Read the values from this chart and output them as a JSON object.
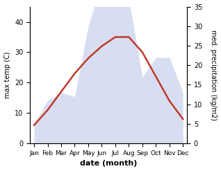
{
  "months": [
    "Jan",
    "Feb",
    "Mar",
    "Apr",
    "May",
    "Jun",
    "Jul",
    "Aug",
    "Sep",
    "Oct",
    "Nov",
    "Dec"
  ],
  "max_temp": [
    6,
    11,
    17,
    23,
    28,
    32,
    35,
    35,
    30,
    22,
    14,
    8
  ],
  "precipitation": [
    5,
    11,
    13,
    12,
    30,
    41,
    37,
    37,
    17,
    22,
    22,
    13
  ],
  "temp_color": "#c0392b",
  "precip_fill_color": "#b8c4e8",
  "temp_ylim": [
    0,
    45
  ],
  "temp_yticks": [
    0,
    10,
    20,
    30,
    40
  ],
  "precip_ylim_max": 35,
  "precip_yticks": [
    0,
    5,
    10,
    15,
    20,
    25,
    30,
    35
  ],
  "xlabel": "date (month)",
  "ylabel_left": "max temp (C)",
  "ylabel_right": "med. precipitation (kg/m2)",
  "figsize": [
    3.18,
    2.47
  ],
  "dpi": 100
}
